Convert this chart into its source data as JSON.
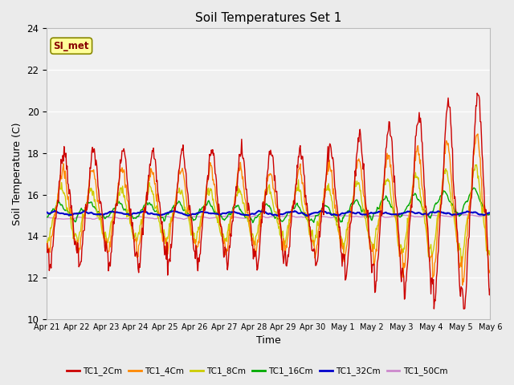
{
  "title": "Soil Temperatures Set 1",
  "xlabel": "Time",
  "ylabel": "Soil Temperature (C)",
  "ylim": [
    10,
    24
  ],
  "yticks": [
    10,
    12,
    14,
    16,
    18,
    20,
    22,
    24
  ],
  "bg_color": "#ebebeb",
  "plot_bg_color": "#f0f0f0",
  "grid_color": "#ffffff",
  "series_colors": {
    "TC1_2Cm": "#cc0000",
    "TC1_4Cm": "#ff8800",
    "TC1_8Cm": "#cccc00",
    "TC1_16Cm": "#00aa00",
    "TC1_32Cm": "#0000cc",
    "TC1_50Cm": "#cc88cc"
  },
  "annotation_text": "SI_met",
  "annotation_box_color": "#ffff99",
  "annotation_border_color": "#888800",
  "x_tick_labels": [
    "Apr 21",
    "Apr 22",
    "Apr 23",
    "Apr 24",
    "Apr 25",
    "Apr 26",
    "Apr 27",
    "Apr 28",
    "Apr 29",
    "Apr 30",
    "May 1",
    "May 2",
    "May 3",
    "May 4",
    "May 5",
    "May 6"
  ]
}
